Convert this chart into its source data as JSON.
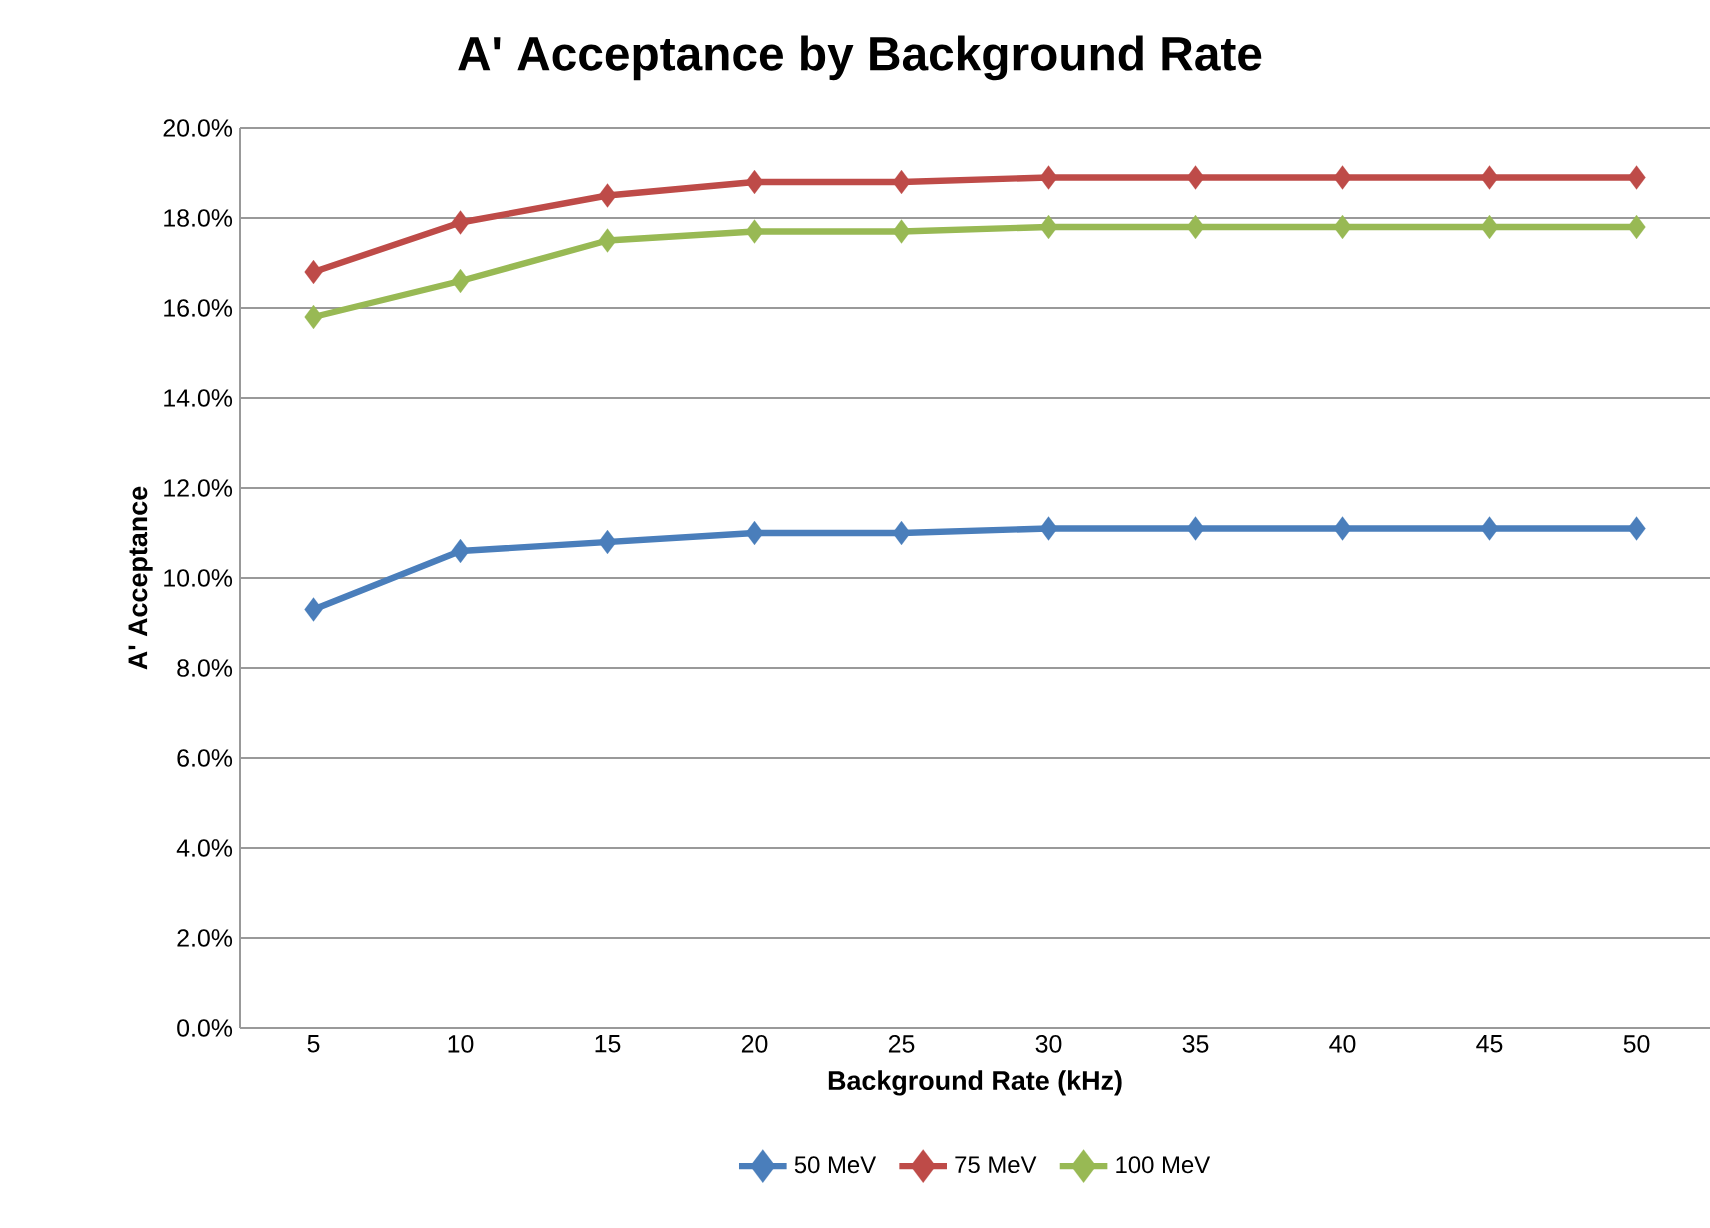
{
  "chart_data": {
    "type": "line",
    "title": "A' Acceptance by Background Rate",
    "xlabel": "Background Rate (kHz)",
    "ylabel": "A' Acceptance",
    "categories": [
      "5",
      "10",
      "15",
      "20",
      "25",
      "30",
      "35",
      "40",
      "45",
      "50"
    ],
    "series": [
      {
        "name": "50 MeV",
        "color": "#4a7ebb",
        "values": [
          9.3,
          10.6,
          10.8,
          11.0,
          11.0,
          11.1,
          11.1,
          11.1,
          11.1,
          11.1
        ]
      },
      {
        "name": "75 MeV",
        "color": "#be4b48",
        "values": [
          16.8,
          17.9,
          18.5,
          18.8,
          18.8,
          18.9,
          18.9,
          18.9,
          18.9,
          18.9
        ]
      },
      {
        "name": "100 MeV",
        "color": "#98b954",
        "values": [
          15.8,
          16.6,
          17.5,
          17.7,
          17.7,
          17.8,
          17.8,
          17.8,
          17.8,
          17.8
        ]
      }
    ],
    "ylim": [
      0,
      20
    ],
    "yticks": [
      {
        "value": 0,
        "label": "0.0%"
      },
      {
        "value": 2,
        "label": "2.0%"
      },
      {
        "value": 4,
        "label": "4.0%"
      },
      {
        "value": 6,
        "label": "6.0%"
      },
      {
        "value": 8,
        "label": "8.0%"
      },
      {
        "value": 10,
        "label": "10.0%"
      },
      {
        "value": 12,
        "label": "12.0%"
      },
      {
        "value": 14,
        "label": "14.0%"
      },
      {
        "value": 16,
        "label": "16.0%"
      },
      {
        "value": 18,
        "label": "18.0%"
      },
      {
        "value": 20,
        "label": "20.0%"
      }
    ],
    "grid": "y",
    "legend": "bottom",
    "marker": "diamond",
    "line_style": "solid"
  }
}
